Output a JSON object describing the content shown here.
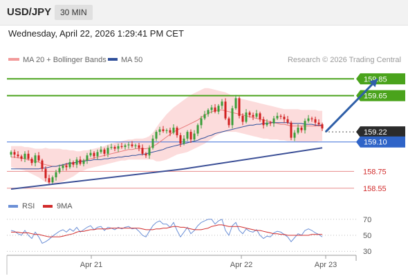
{
  "header": {
    "pair": "USD/JPY",
    "timeframe": "30 MIN"
  },
  "timestamp": "Wednesday, April 22, 2026 1:29:41 PM CET",
  "legend": {
    "ma20": "MA 20 + Bollinger Bands",
    "ma50": "MA 50",
    "credit": "Research © 2026 Trading Central"
  },
  "rsi_legend": {
    "rsi": "RSI",
    "ma": "9MA"
  },
  "colors": {
    "up": "#3a9e3a",
    "down": "#d11f1f",
    "bb_fill": "#fbd6d6",
    "ma20": "#e87a7a",
    "ma50": "#2f4f9a",
    "resistance": "#4aa31c",
    "support": "#e88a8a",
    "pivot": "#3a6fd8",
    "arrow": "#2f5fa8",
    "current": "#2b2b2b",
    "rsi": "#6b8fd6",
    "rsi_ma": "#d12a2a"
  },
  "chart_data": [
    {
      "type": "candlestick",
      "symbol": "USD/JPY",
      "timeframe": "30 MIN",
      "x_ticks": [
        "Apr 21",
        "Apr 22",
        "Apr 23"
      ],
      "ylim": [
        158.45,
        160.0
      ],
      "levels": [
        {
          "label": "159.85",
          "value": 159.85,
          "kind": "resistance"
        },
        {
          "label": "159.65",
          "value": 159.65,
          "kind": "resistance"
        },
        {
          "label": "159.22",
          "value": 159.22,
          "kind": "current"
        },
        {
          "label": "159.10",
          "value": 159.1,
          "kind": "pivot"
        },
        {
          "label": "158.75",
          "value": 158.75,
          "kind": "support"
        },
        {
          "label": "158.55",
          "value": 158.55,
          "kind": "support"
        }
      ],
      "close": [
        158.98,
        158.95,
        158.93,
        158.9,
        158.96,
        158.9,
        158.85,
        158.94,
        158.88,
        158.78,
        158.67,
        158.62,
        158.68,
        158.74,
        158.79,
        158.82,
        158.8,
        158.86,
        158.83,
        158.89,
        158.84,
        158.88,
        158.94,
        158.97,
        158.93,
        158.98,
        159.01,
        158.96,
        159.03,
        159.04,
        159.02,
        159.05,
        159.04,
        159.06,
        159.07,
        159.05,
        159.06,
        159.03,
        158.96,
        158.94,
        159.03,
        159.14,
        159.22,
        159.25,
        159.23,
        159.24,
        159.21,
        159.27,
        159.18,
        159.08,
        159.14,
        159.22,
        159.13,
        159.2,
        159.3,
        159.38,
        159.43,
        159.48,
        159.51,
        159.46,
        159.53,
        159.58,
        159.38,
        159.3,
        159.5,
        159.62,
        159.41,
        159.34,
        159.45,
        159.42,
        159.4,
        159.44,
        159.37,
        159.3,
        159.33,
        159.32,
        159.38,
        159.41,
        159.4,
        159.37,
        159.33,
        159.15,
        159.21,
        159.27,
        159.24,
        159.35,
        159.38,
        159.37,
        159.33,
        159.31,
        159.26
      ],
      "ma20": [
        158.92,
        158.92,
        158.91,
        158.91,
        158.9,
        158.89,
        158.88,
        158.87,
        158.86,
        158.84,
        158.83,
        158.82,
        158.81,
        158.81,
        158.82,
        158.82,
        158.83,
        158.84,
        158.85,
        158.86,
        158.87,
        158.88,
        158.89,
        158.9,
        158.91,
        158.92,
        158.93,
        158.94,
        158.95,
        158.96,
        158.97,
        158.98,
        158.99,
        159.0,
        159.01,
        159.01,
        159.02,
        159.02,
        159.02,
        159.02,
        159.03,
        159.05,
        159.07,
        159.1,
        159.13,
        159.16,
        159.19,
        159.22,
        159.24,
        159.26,
        159.28,
        159.3,
        159.32,
        159.34,
        159.36,
        159.39,
        159.42,
        159.44,
        159.46,
        159.47,
        159.48,
        159.48,
        159.47,
        159.46,
        159.45,
        159.44,
        159.43,
        159.42,
        159.41,
        159.4,
        159.39,
        159.38,
        159.37,
        159.36,
        159.35,
        159.34,
        159.33,
        159.32,
        159.31,
        159.31,
        159.3,
        159.29,
        159.29,
        159.29,
        159.29,
        159.29,
        159.29,
        159.29,
        159.29,
        159.29,
        159.29
      ],
      "bb_upper": [
        159.05,
        159.05,
        159.05,
        159.05,
        159.04,
        159.04,
        159.03,
        159.02,
        159.02,
        159.02,
        159.03,
        159.02,
        159.02,
        159.02,
        159.02,
        159.01,
        159.01,
        159.0,
        159.0,
        158.99,
        158.99,
        159.0,
        159.0,
        159.01,
        159.02,
        159.03,
        159.04,
        159.05,
        159.07,
        159.08,
        159.09,
        159.1,
        159.11,
        159.12,
        159.13,
        159.13,
        159.14,
        159.14,
        159.14,
        159.15,
        159.17,
        159.21,
        159.27,
        159.33,
        159.38,
        159.43,
        159.47,
        159.51,
        159.54,
        159.57,
        159.6,
        159.63,
        159.66,
        159.68,
        159.7,
        159.72,
        159.74,
        159.74,
        159.73,
        159.72,
        159.71,
        159.7,
        159.69,
        159.67,
        159.65,
        159.63,
        159.62,
        159.61,
        159.6,
        159.59,
        159.58,
        159.57,
        159.56,
        159.55,
        159.54,
        159.53,
        159.52,
        159.51,
        159.5,
        159.49,
        159.49,
        159.49,
        159.49,
        159.49,
        159.48,
        159.48,
        159.48,
        159.48,
        159.48,
        159.47,
        159.47
      ],
      "bb_lower": [
        158.8,
        158.79,
        158.78,
        158.77,
        158.76,
        158.74,
        158.72,
        158.7,
        158.68,
        158.65,
        158.62,
        158.61,
        158.61,
        158.61,
        158.62,
        158.63,
        158.65,
        158.67,
        158.69,
        158.72,
        158.75,
        158.76,
        158.78,
        158.79,
        158.8,
        158.81,
        158.82,
        158.83,
        158.84,
        158.85,
        158.86,
        158.87,
        158.88,
        158.88,
        158.89,
        158.89,
        158.89,
        158.89,
        158.89,
        158.89,
        158.89,
        158.89,
        158.87,
        158.87,
        158.88,
        158.89,
        158.91,
        158.93,
        158.95,
        158.96,
        158.97,
        158.98,
        159.0,
        159.02,
        159.04,
        159.06,
        159.08,
        159.11,
        159.14,
        159.17,
        159.19,
        159.21,
        159.22,
        159.22,
        159.22,
        159.22,
        159.21,
        159.2,
        159.19,
        159.18,
        159.17,
        159.16,
        159.15,
        159.14,
        159.14,
        159.13,
        159.13,
        159.13,
        159.12,
        159.12,
        159.11,
        159.11,
        159.11,
        159.1,
        159.1,
        159.1,
        159.1,
        159.1,
        159.1,
        159.11,
        159.11
      ],
      "ma50": [
        158.78,
        158.78,
        158.78,
        158.78,
        158.78,
        158.78,
        158.78,
        158.78,
        158.78,
        158.79,
        158.79,
        158.8,
        158.81,
        158.81,
        158.82,
        158.83,
        158.84,
        158.85,
        158.85,
        158.86,
        158.87,
        158.87,
        158.88,
        158.88,
        158.89,
        158.89,
        158.89,
        158.9,
        158.9,
        158.91,
        158.91,
        158.92,
        158.92,
        158.93,
        158.93,
        158.94,
        158.94,
        158.95,
        158.95,
        158.96,
        158.97,
        158.98,
        158.99,
        159.0,
        159.01,
        159.03,
        159.04,
        159.05,
        159.06,
        159.07,
        159.08,
        159.09,
        159.1,
        159.11,
        159.12,
        159.14,
        159.15,
        159.17,
        159.18,
        159.2,
        159.21,
        159.22,
        159.23,
        159.24,
        159.25,
        159.26,
        159.27,
        159.28,
        159.29,
        159.3,
        159.3,
        159.31,
        159.31,
        159.32,
        159.32,
        159.33,
        159.33,
        159.33,
        159.33,
        159.33,
        159.33,
        159.32,
        159.32,
        159.32,
        159.32,
        159.31,
        159.31,
        159.31,
        159.3,
        159.3,
        159.3
      ],
      "trendline": [
        [
          0,
          158.54
        ],
        [
          50,
          158.78
        ],
        [
          90,
          159.03
        ]
      ],
      "forecast": [
        [
          91,
          159.22
        ],
        [
          106,
          159.85
        ]
      ]
    },
    {
      "type": "line",
      "name": "RSI",
      "ylim": [
        25,
        75
      ],
      "yticks": [
        30,
        50,
        70
      ],
      "series": [
        {
          "name": "RSI",
          "values": [
            56,
            55,
            52,
            50,
            56,
            50,
            46,
            54,
            48,
            40,
            42,
            45,
            49,
            52,
            55,
            57,
            54,
            58,
            55,
            60,
            54,
            57,
            60,
            62,
            57,
            60,
            61,
            56,
            60,
            59,
            57,
            60,
            58,
            60,
            61,
            58,
            59,
            55,
            50,
            48,
            55,
            62,
            66,
            68,
            64,
            64,
            60,
            66,
            56,
            48,
            54,
            60,
            52,
            56,
            62,
            66,
            68,
            70,
            70,
            64,
            68,
            70,
            56,
            50,
            62,
            66,
            56,
            52,
            58,
            55,
            54,
            57,
            50,
            46,
            49,
            48,
            53,
            55,
            54,
            51,
            48,
            42,
            47,
            52,
            50,
            56,
            58,
            56,
            53,
            51,
            48
          ]
        },
        {
          "name": "9MA",
          "values": [
            54,
            54,
            54,
            53,
            53,
            53,
            52,
            51,
            51,
            50,
            49,
            48,
            48,
            48,
            48,
            49,
            50,
            51,
            52,
            54,
            55,
            55,
            56,
            57,
            57,
            58,
            58,
            58,
            58,
            59,
            59,
            59,
            59,
            59,
            59,
            59,
            59,
            59,
            58,
            57,
            57,
            57,
            58,
            58,
            59,
            59,
            60,
            61,
            61,
            60,
            60,
            59,
            58,
            57,
            57,
            57,
            58,
            59,
            61,
            62,
            63,
            63,
            62,
            61,
            61,
            61,
            61,
            60,
            59,
            58,
            57,
            56,
            56,
            55,
            54,
            53,
            52,
            52,
            51,
            51,
            50,
            50,
            50,
            50,
            50,
            50,
            50,
            51,
            51,
            51,
            51
          ]
        }
      ]
    }
  ]
}
